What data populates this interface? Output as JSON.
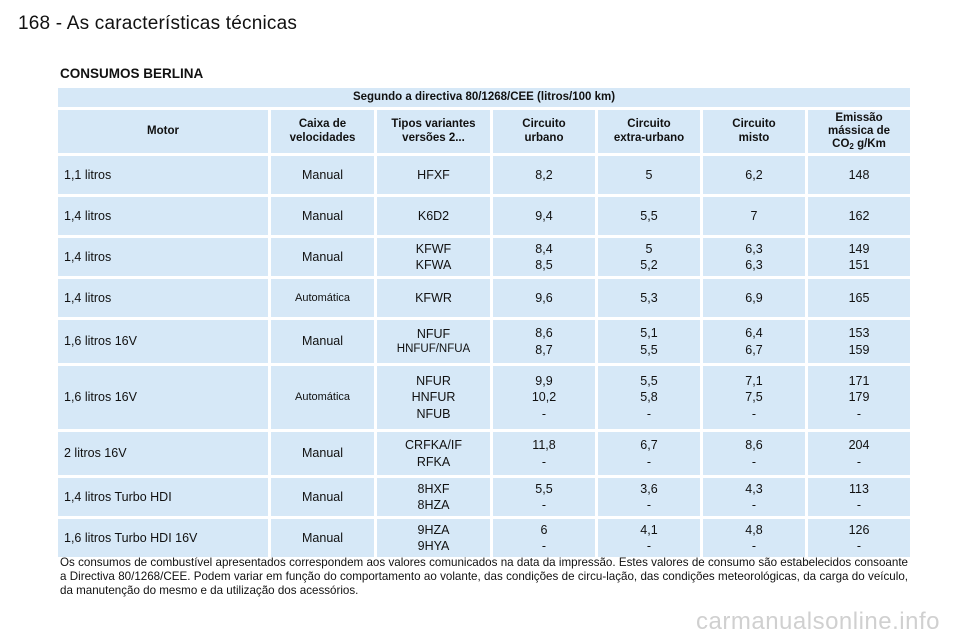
{
  "header": {
    "page_title": "168 - As características técnicas"
  },
  "section_title": "CONSUMOS BERLINA",
  "table": {
    "supertitle": "Segundo a directiva 80/1268/CEE (litros/100 km)",
    "headers": {
      "motor": "Motor",
      "caixa_l1": "Caixa de",
      "caixa_l2": "velocidades",
      "tipos_l1": "Tipos variantes",
      "tipos_l2": "versões 2...",
      "urbano_l1": "Circuito",
      "urbano_l2": "urbano",
      "extra_l1": "Circuito",
      "extra_l2": "extra-urbano",
      "misto_l1": "Circuito",
      "misto_l2": "misto",
      "co2_l1": "Emissão",
      "co2_l2": "mássica de",
      "co2_l3a": "CO",
      "co2_sub": "2",
      "co2_l3b": " g/Km"
    },
    "rows": [
      {
        "motor": "1,1 litros",
        "caixa": "Manual",
        "tipos": [
          "HFXF"
        ],
        "urbano": [
          "8,2"
        ],
        "extra": [
          "5"
        ],
        "misto": [
          "6,2"
        ],
        "co2": [
          "148"
        ]
      },
      {
        "motor": "1,4 litros",
        "caixa": "Manual",
        "tipos": [
          "K6D2"
        ],
        "urbano": [
          "9,4"
        ],
        "extra": [
          "5,5"
        ],
        "misto": [
          "7"
        ],
        "co2": [
          "162"
        ]
      },
      {
        "motor": "1,4 litros",
        "caixa": "Manual",
        "tipos": [
          "KFWF",
          "KFWA"
        ],
        "urbano": [
          "8,4",
          "8,5"
        ],
        "extra": [
          "5",
          "5,2"
        ],
        "misto": [
          "6,3",
          "6,3"
        ],
        "co2": [
          "149",
          "151"
        ]
      },
      {
        "motor": "1,4 litros",
        "caixa": "Automática",
        "tipos": [
          "KFWR"
        ],
        "urbano": [
          "9,6"
        ],
        "extra": [
          "5,3"
        ],
        "misto": [
          "6,9"
        ],
        "co2": [
          "165"
        ]
      },
      {
        "motor": "1,6 litros 16V",
        "caixa": "Manual",
        "tipos": [
          "NFUF",
          "HNFUF/NFUA"
        ],
        "urbano": [
          "8,6",
          "8,7"
        ],
        "extra": [
          "5,1",
          "5,5"
        ],
        "misto": [
          "6,4",
          "6,7"
        ],
        "co2": [
          "153",
          "159"
        ]
      },
      {
        "motor": "1,6 litros 16V",
        "caixa": "Automática",
        "tipos": [
          "NFUR",
          "HNFUR",
          "NFUB"
        ],
        "urbano": [
          "9,9",
          "10,2",
          "-"
        ],
        "extra": [
          "5,5",
          "5,8",
          "-"
        ],
        "misto": [
          "7,1",
          "7,5",
          "-"
        ],
        "co2": [
          "171",
          "179",
          "-"
        ]
      },
      {
        "motor": "2 litros 16V",
        "caixa": "Manual",
        "tipos": [
          "CRFKA/IF",
          "RFKA"
        ],
        "urbano": [
          "11,8",
          "-"
        ],
        "extra": [
          "6,7",
          "-"
        ],
        "misto": [
          "8,6",
          "-"
        ],
        "co2": [
          "204",
          "-"
        ]
      },
      {
        "motor": "1,4 litros Turbo HDI",
        "caixa": "Manual",
        "tipos": [
          "8HXF",
          "8HZA"
        ],
        "urbano": [
          "5,5",
          "-"
        ],
        "extra": [
          "3,6",
          "-"
        ],
        "misto": [
          "4,3",
          "-"
        ],
        "co2": [
          "113",
          "-"
        ]
      },
      {
        "motor": "1,6 litros Turbo HDI 16V",
        "caixa": "Manual",
        "tipos": [
          "9HZA",
          "9HYA"
        ],
        "urbano": [
          "6",
          "-"
        ],
        "extra": [
          "4,1",
          "-"
        ],
        "misto": [
          "4,8",
          "-"
        ],
        "co2": [
          "126",
          "-"
        ]
      }
    ]
  },
  "footnote": "Os consumos de combustível apresentados correspondem aos valores comunicados na data da impressão. Estes valores de consumo são estabelecidos consoante a Directiva 80/1268/CEE. Podem variar em função do comportamento ao volante, das condições de circu-lação, das condições meteorológicas, da carga do veículo, da manutenção do mesmo e da utilização dos acessórios.",
  "watermark": "carmanualsonline.info",
  "colors": {
    "cell_background": "#d6e8f7",
    "text": "#111111",
    "watermark": "#d0d0d0"
  }
}
